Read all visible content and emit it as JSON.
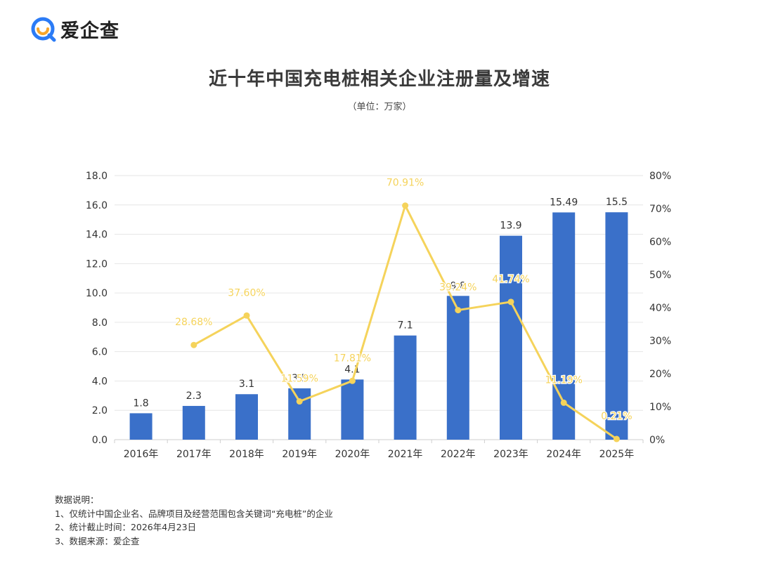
{
  "header": {
    "logo_text": "爱企查",
    "logo_color": "#2b7bf6",
    "logo_accent": "#f7a52b"
  },
  "title": "近十年中国充电桩相关企业注册量及增速",
  "subtitle": "（单位：万家）",
  "chart_data": {
    "type": "bar",
    "categories": [
      "2016年",
      "2017年",
      "2018年",
      "2019年",
      "2020年",
      "2021年",
      "2022年",
      "2023年",
      "2024年",
      "2025年"
    ],
    "series": [
      {
        "type": "bar",
        "axis": "left",
        "values": [
          1.8,
          2.3,
          3.1,
          3.5,
          4.1,
          7.1,
          9.8,
          13.9,
          15.49,
          15.5
        ],
        "labels": [
          "1.8",
          "2.3",
          "3.1",
          "3.5",
          "4.1",
          "7.1",
          "9.8",
          "13.9",
          "15.49",
          "15.5"
        ],
        "color": "#3a70c9"
      },
      {
        "type": "line",
        "axis": "right",
        "values": [
          null,
          28.68,
          37.6,
          11.59,
          17.81,
          70.91,
          39.24,
          41.74,
          11.19,
          0.21
        ],
        "labels": [
          null,
          "28.68%",
          "37.60%",
          "11.59%",
          "17.81%",
          "70.91%",
          "39.24%",
          "41.74%",
          "11.19%",
          "0.21%"
        ],
        "color": "#f5d35b"
      }
    ],
    "ylim_left": [
      0,
      18
    ],
    "yticks_left": [
      "0.0",
      "2.0",
      "4.0",
      "6.0",
      "8.0",
      "10.0",
      "12.0",
      "14.0",
      "16.0",
      "18.0"
    ],
    "ylim_right": [
      0,
      80
    ],
    "yticks_right": [
      "0%",
      "10%",
      "20%",
      "30%",
      "40%",
      "50%",
      "60%",
      "70%",
      "80%"
    ],
    "grid": true
  },
  "notes": {
    "heading": "数据说明：",
    "items": [
      "1、仅统计中国企业名、品牌项目及经营范围包含关键词“充电桩”的企业",
      "2、统计截止时间：2026年4月23日",
      "3、数据来源：爱企查"
    ]
  }
}
